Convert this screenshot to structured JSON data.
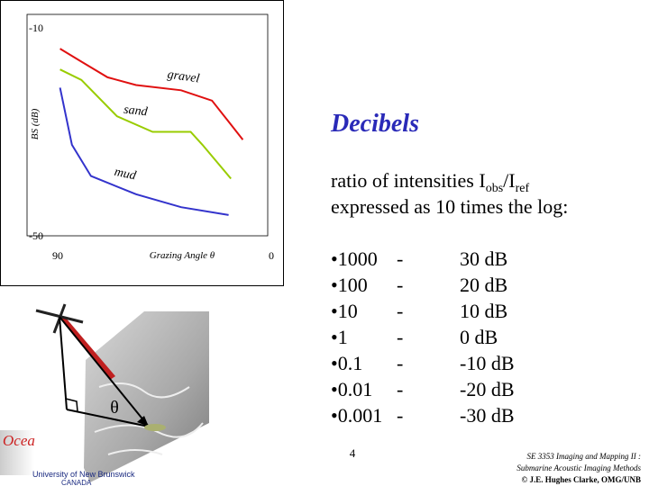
{
  "chart_data": {
    "type": "line",
    "ylabel": "BS (dB)",
    "xlabel": "Grazing Angle θ",
    "xlim": [
      90,
      0
    ],
    "ylim": [
      -50,
      -10
    ],
    "xticks": [
      90,
      0
    ],
    "yticks": [
      -10,
      -50
    ],
    "series": [
      {
        "name": "gravel",
        "color": "#e01010",
        "x": [
          89,
          80,
          69,
          57,
          38,
          25,
          12
        ],
        "values": [
          -14,
          -16.5,
          -19.5,
          -21,
          -22,
          -24,
          -31.5
        ]
      },
      {
        "name": "sand",
        "color": "#99cc00",
        "x": [
          89,
          80,
          65,
          50,
          34,
          29,
          17
        ],
        "values": [
          -18,
          -20,
          -27,
          -30,
          -30,
          -32.5,
          -39
        ]
      },
      {
        "name": "mud",
        "color": "#3333cc",
        "x": [
          89,
          84,
          76,
          57,
          38,
          18
        ],
        "values": [
          -21.5,
          -32.5,
          -38.5,
          -42,
          -44.5,
          -46
        ]
      }
    ]
  },
  "figure": {
    "angle_label": "θ"
  },
  "logo": {
    "word": "Ocea",
    "university": "University of New Brunswick",
    "country": "CANADA"
  },
  "slide": {
    "title": "Decibels",
    "intro": {
      "prefix": "ratio of intensities  I",
      "sub1": "obs",
      "mid": "/I",
      "sub2": "ref"
    },
    "line2": "expressed as 10 times the log:",
    "rows": [
      [
        "•1000",
        "-",
        "30 dB"
      ],
      [
        "•100",
        "-",
        "20 dB"
      ],
      [
        "•10",
        "-",
        "10 dB"
      ],
      [
        "•1",
        "-",
        "0 dB"
      ],
      [
        "•0.1",
        "-",
        "-10 dB"
      ],
      [
        "•0.01",
        "-",
        "-20 dB"
      ],
      [
        "•0.001",
        "-",
        "-30 dB"
      ]
    ],
    "page": "4",
    "footer": [
      "SE 3353 Imaging and Mapping II :",
      "Submarine Acoustic Imaging Methods",
      "© J.E. Hughes Clarke, OMG/UNB"
    ]
  }
}
